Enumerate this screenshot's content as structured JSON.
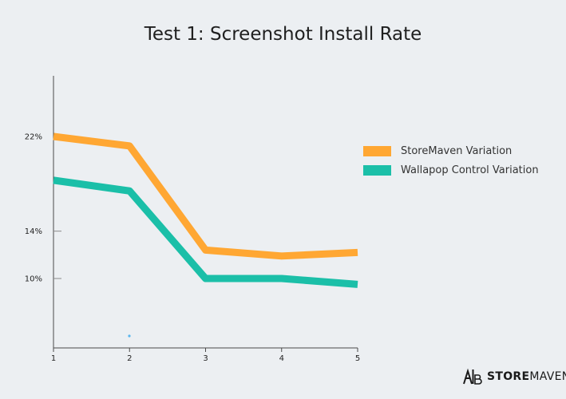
{
  "chart_data": {
    "type": "line",
    "title": "Test 1: Screenshot Install Rate",
    "x": [
      1,
      2,
      3,
      4,
      5
    ],
    "y_ticks": [
      {
        "value": 22,
        "label": "22%"
      },
      {
        "value": 14,
        "label": "14%"
      },
      {
        "value": 10,
        "label": "10%"
      }
    ],
    "series": [
      {
        "name": "StoreMaven Variation",
        "color": "#ffa733",
        "values": [
          22.0,
          21.2,
          12.4,
          11.9,
          12.2
        ]
      },
      {
        "name": "Wallapop Control Variation",
        "color": "#1bbfa8",
        "values": [
          18.3,
          17.4,
          10.0,
          10.0,
          9.5
        ]
      }
    ],
    "legend_position": "right"
  },
  "brand": {
    "name_bold": "STORE",
    "name_light": "MAVEN"
  }
}
